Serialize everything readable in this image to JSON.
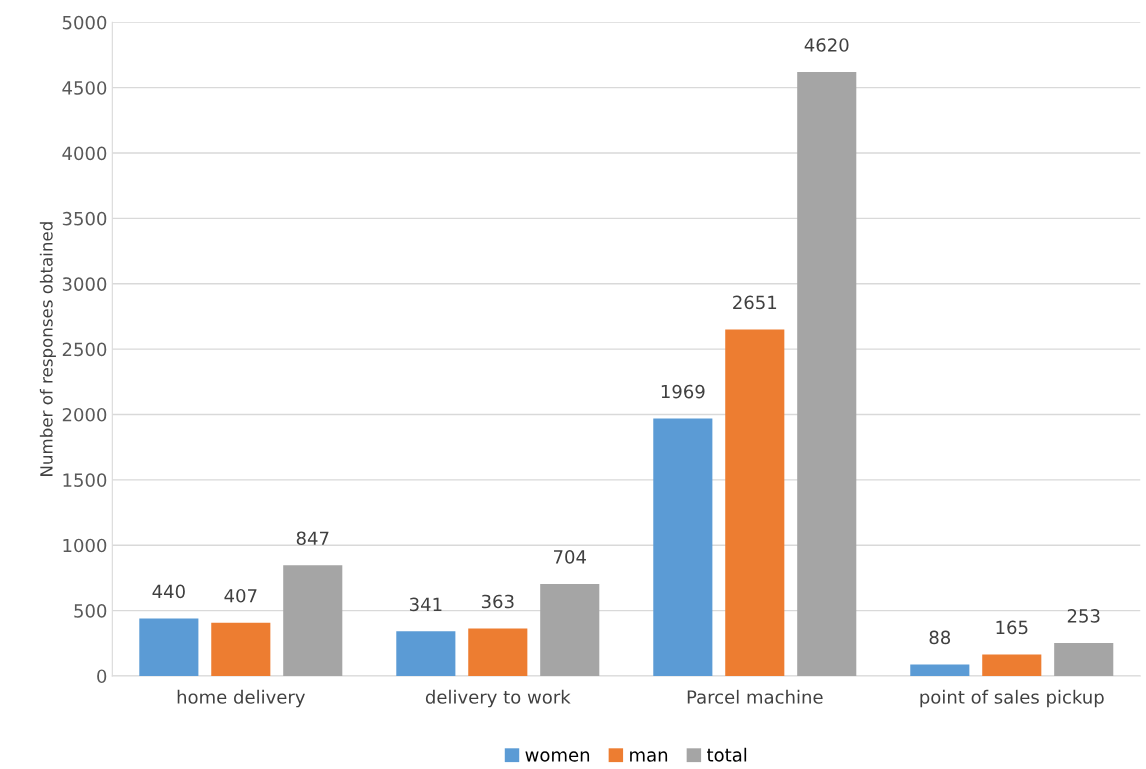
{
  "chart_data": {
    "type": "bar",
    "ylabel": "Number of responses obtained",
    "categories": [
      "home delivery",
      "delivery to work",
      "Parcel machine",
      "point of sales pickup"
    ],
    "series": [
      {
        "name": "women",
        "color": "#5b9bd5",
        "values": [
          440,
          341,
          1969,
          88
        ]
      },
      {
        "name": "man",
        "color": "#ed7d31",
        "values": [
          407,
          363,
          2651,
          165
        ]
      },
      {
        "name": "total",
        "color": "#a5a5a5",
        "values": [
          847,
          704,
          4620,
          253
        ]
      }
    ],
    "ylim": [
      0,
      5000
    ],
    "yticks": [
      0,
      500,
      1000,
      1500,
      2000,
      2500,
      3000,
      3500,
      4000,
      4500,
      5000
    ],
    "grid": "y",
    "legend": "bottom",
    "data_labels": true
  }
}
